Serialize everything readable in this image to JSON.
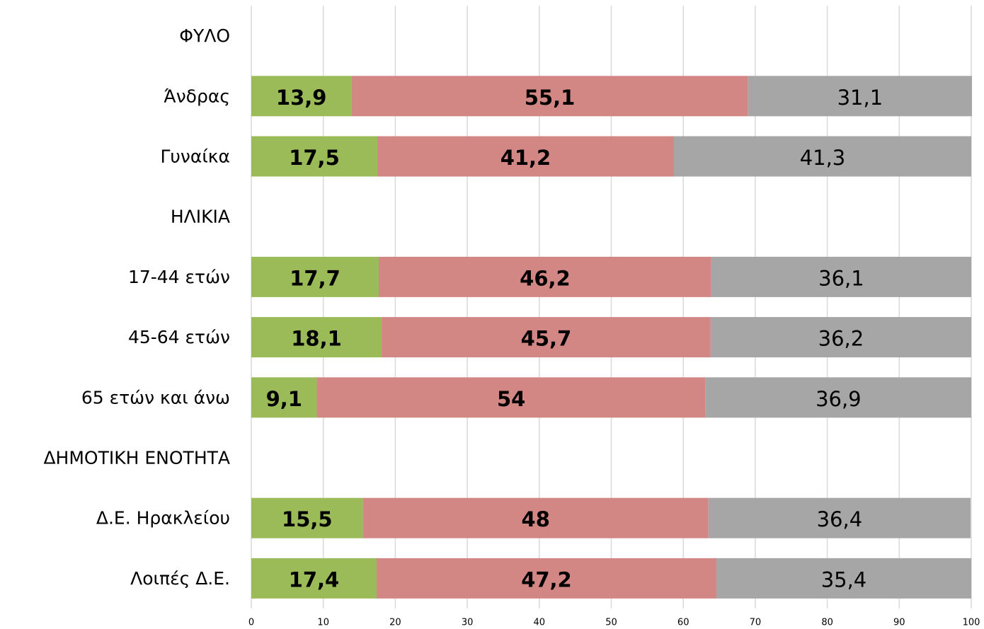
{
  "chart_data": {
    "type": "stacked-barh",
    "categories": [
      "ΦΥΛΟ",
      "Άνδρας",
      "Γυναίκα",
      "ΗΛΙΚΙΑ",
      "17-44 ετών",
      "45-64 ετών",
      "65 ετών και άνω",
      "ΔΗΜΟΤΙΚΗ ΕΝΟΤΗΤΑ",
      "Δ.Ε. Ηρακλείου",
      "Λοιπές Δ.Ε."
    ],
    "series": [
      {
        "color": "#9bbb59",
        "values": [
          null,
          13.9,
          17.5,
          null,
          17.7,
          18.1,
          9.1,
          null,
          15.5,
          17.4
        ],
        "value_labels": [
          null,
          "13,9",
          "17,5",
          null,
          "17,7",
          "18,1",
          "9,1",
          null,
          "15,5",
          "17,4"
        ]
      },
      {
        "color": "#d38785",
        "values": [
          null,
          55.1,
          41.2,
          null,
          46.2,
          45.7,
          54,
          null,
          48,
          47.2
        ],
        "value_labels": [
          null,
          "55,1",
          "41,2",
          null,
          "46,2",
          "45,7",
          "54",
          null,
          "48",
          "47,2"
        ]
      },
      {
        "color": "#a6a6a6",
        "values": [
          null,
          31.1,
          41.3,
          null,
          36.1,
          36.2,
          36.9,
          null,
          36.4,
          35.4
        ],
        "value_labels": [
          null,
          "31,1",
          "41,3",
          null,
          "36,1",
          "36,2",
          "36,9",
          null,
          "36,4",
          "35,4"
        ]
      }
    ],
    "xlim": [
      0,
      100
    ],
    "xticks": [
      0,
      10,
      20,
      30,
      40,
      50,
      60,
      70,
      80,
      90,
      100
    ],
    "grid": true
  }
}
